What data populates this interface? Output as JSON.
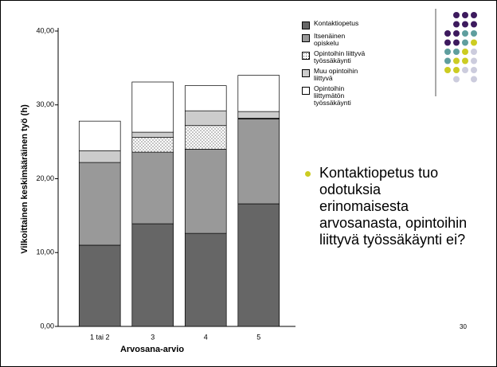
{
  "chart_data": {
    "type": "stacked_bar",
    "y_label": "Vilkoittainen keskimääräinen työ (h)",
    "x_label": "Arvosana-arvio",
    "categories": [
      "1 tai 2",
      "3",
      "4",
      "5"
    ],
    "series": [
      {
        "name": "Kontaktiopetus",
        "color": "#666666",
        "values": [
          11.0,
          13.9,
          12.6,
          16.6
        ]
      },
      {
        "name": "Itsenäinen opiskelu",
        "color": "#999999",
        "values": [
          11.2,
          9.7,
          11.4,
          11.5
        ]
      },
      {
        "name": "Opintoihin liittyvä työssäkäynti",
        "color": "#ffffff",
        "pattern": "dots",
        "values": [
          0,
          2.0,
          3.2,
          0.1
        ]
      },
      {
        "name": "Muu opintoihin liittyvä",
        "color": "#cccccc",
        "values": [
          1.6,
          0.7,
          2.0,
          0.9
        ]
      },
      {
        "name": "Opintoihin liittymätön työssäkäynti",
        "color": "#ffffff",
        "values": [
          4.0,
          6.8,
          3.4,
          4.9
        ]
      }
    ],
    "ylim": [
      0,
      40
    ],
    "yticks": [
      {
        "value": 0,
        "label": "0,00"
      },
      {
        "value": 10,
        "label": "10,00"
      },
      {
        "value": 20,
        "label": "20,00"
      },
      {
        "value": 30,
        "label": "30,00"
      },
      {
        "value": 40,
        "label": "40,00"
      }
    ],
    "legend": "top-right"
  },
  "slide": {
    "bullet": "Kontaktiopetus tuo odotuksia erinomaisesta arvosanasta, opintoihin liittyvä työssäkäynti ei?",
    "page_number": "30"
  }
}
